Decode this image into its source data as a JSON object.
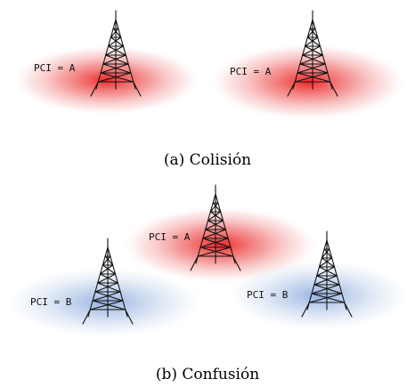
{
  "panel_a": {
    "caption": "(a) Colisión",
    "cell_left_label": "PCI = A",
    "cell_right_label": "PCI = A"
  },
  "panel_b": {
    "caption": "(b) Confusión",
    "cell_top_label": "PCI = A",
    "cell_left_label": "PCI = B",
    "cell_right_label": "PCI = B"
  },
  "colors": {
    "pci_a": "#ee2a2a",
    "pci_b": "#6a8fd0"
  },
  "icons": {
    "cell_tower": "cell-tower-icon"
  }
}
